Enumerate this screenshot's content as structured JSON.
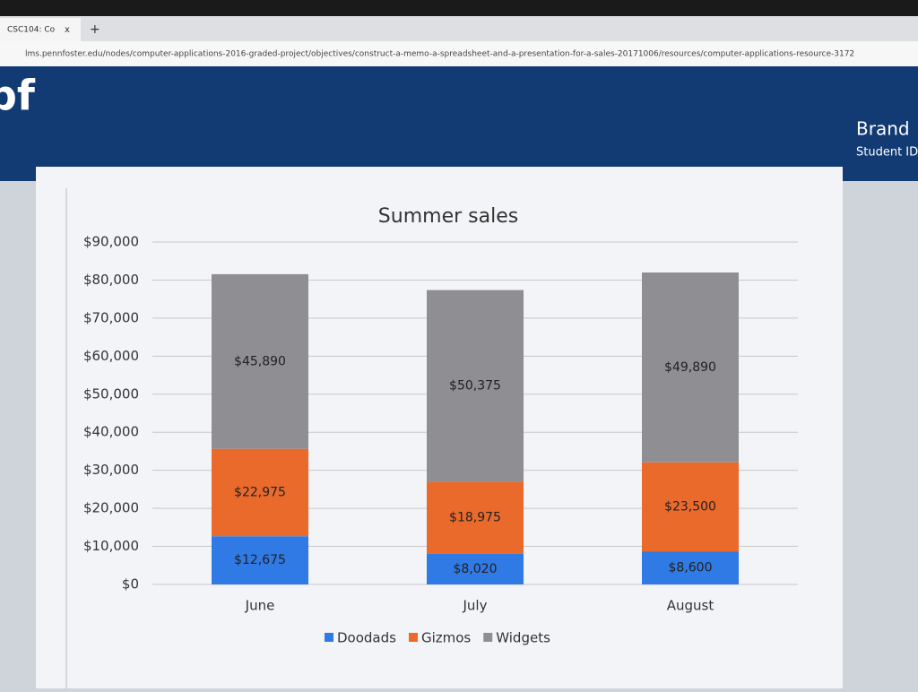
{
  "browser": {
    "tab_title": "CSC104: Co",
    "tab_close": "x",
    "new_tab": "+",
    "url": "lms.pennfoster.edu/nodes/computer-applications-2016-graded-project/objectives/construct-a-memo-a-spreadsheet-and-a-presentation-for-a-sales-20171006/resources/computer-applications-resource-3172"
  },
  "header": {
    "logo": "pf",
    "user_name": "Brand",
    "user_sub": "Student ID"
  },
  "chart_data": {
    "type": "stacked_bar",
    "title": "Summer sales",
    "categories": [
      "June",
      "July",
      "August"
    ],
    "series": [
      {
        "name": "Doodads",
        "color": "#2f7ae5",
        "values": [
          12675,
          8020,
          8600
        ],
        "value_labels": [
          "$12,675",
          "$8,020",
          "$8,600"
        ]
      },
      {
        "name": "Gizmos",
        "color": "#ea6a2b",
        "values": [
          22975,
          18975,
          23500
        ],
        "value_labels": [
          "$22,975",
          "$18,975",
          "$23,500"
        ]
      },
      {
        "name": "Widgets",
        "color": "#8f8f93",
        "values": [
          45890,
          50375,
          49890
        ],
        "value_labels": [
          "$45,890",
          "$50,375",
          "$49,890"
        ]
      }
    ],
    "ylim": [
      0,
      90000
    ],
    "yticks": [
      {
        "value": 0,
        "label": "$0"
      },
      {
        "value": 10000,
        "label": "$10,000"
      },
      {
        "value": 20000,
        "label": "$20,000"
      },
      {
        "value": 30000,
        "label": "$30,000"
      },
      {
        "value": 40000,
        "label": "$40,000"
      },
      {
        "value": 50000,
        "label": "$50,000"
      },
      {
        "value": 60000,
        "label": "$60,000"
      },
      {
        "value": 70000,
        "label": "$70,000"
      },
      {
        "value": 80000,
        "label": "$80,000"
      },
      {
        "value": 90000,
        "label": "$90,000"
      }
    ],
    "grid": true,
    "legend": "bottom"
  }
}
